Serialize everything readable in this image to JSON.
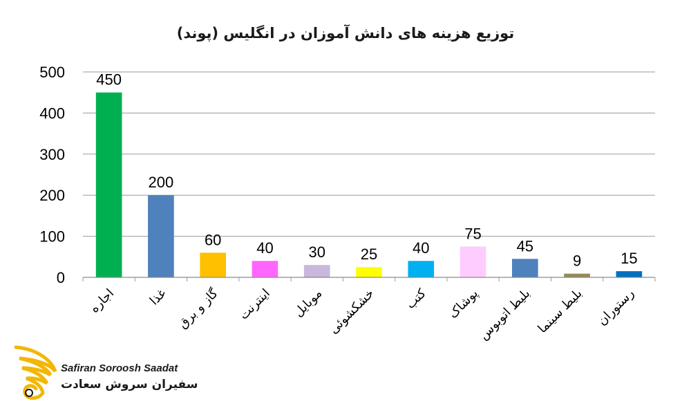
{
  "chart_data": {
    "type": "bar",
    "title": "توزیع هزینه های دانش آموزان در انگلیس (پوند)",
    "categories": [
      "اجاره",
      "غذا",
      "گاز و برق",
      "اینترنت",
      "موبایل",
      "خشکشوئی",
      "کتب",
      "پوشاک",
      "بلیط اتوبوس",
      "بلیط سینما",
      "رستوران"
    ],
    "values": [
      450,
      200,
      60,
      40,
      30,
      25,
      40,
      75,
      45,
      9,
      15
    ],
    "bar_colors": [
      "#00b050",
      "#4f81bd",
      "#ffc000",
      "#ff66ff",
      "#c9b8dc",
      "#ffff00",
      "#00b0f0",
      "#ffccff",
      "#4f81bd",
      "#948a54",
      "#0070c0"
    ],
    "ylim": [
      0,
      500
    ],
    "yticks": [
      0,
      100,
      200,
      300,
      400,
      500
    ],
    "grid": true,
    "legend": "none",
    "xlabel": "",
    "ylabel": ""
  },
  "logo": {
    "name_en": "Safiran Soroosh Saadat",
    "name_fa": "سفیران سروش سعادت",
    "color": "#f2b705"
  }
}
